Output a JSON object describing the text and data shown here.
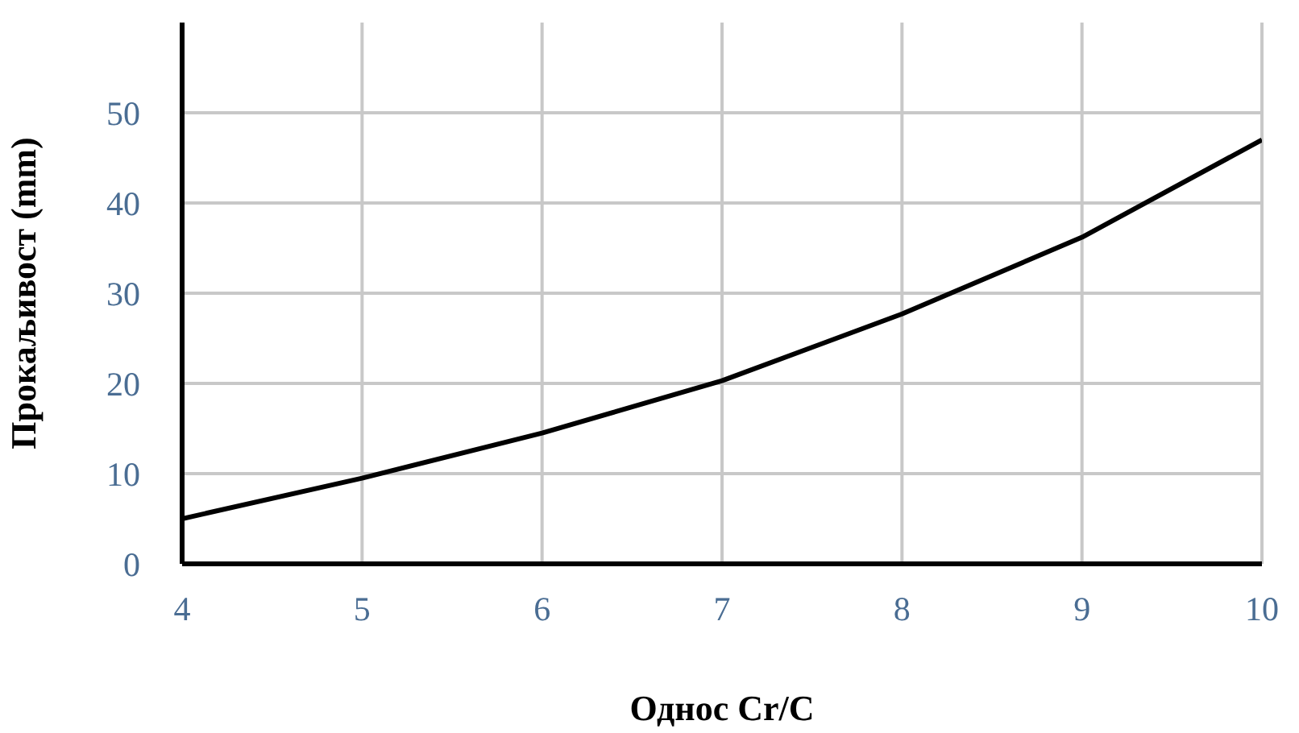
{
  "chart_data": {
    "type": "line",
    "xlabel": "Однос Cr/C",
    "ylabel": "Прокаљивост (mm)",
    "x": [
      4,
      5,
      6,
      7,
      8,
      9,
      10
    ],
    "series": [
      {
        "color": "#000000",
        "values": [
          5,
          9.5,
          14.5,
          20.3,
          27.7,
          36.2,
          47
        ]
      }
    ],
    "xlim": [
      4,
      10
    ],
    "xticks": [
      4,
      5,
      6,
      7,
      8,
      9,
      10
    ],
    "ylim": [
      0,
      60
    ],
    "yticks": [
      0,
      10,
      20,
      30,
      40,
      50
    ],
    "grid": true,
    "legend": false,
    "marker": "none",
    "line_style": "solid"
  }
}
